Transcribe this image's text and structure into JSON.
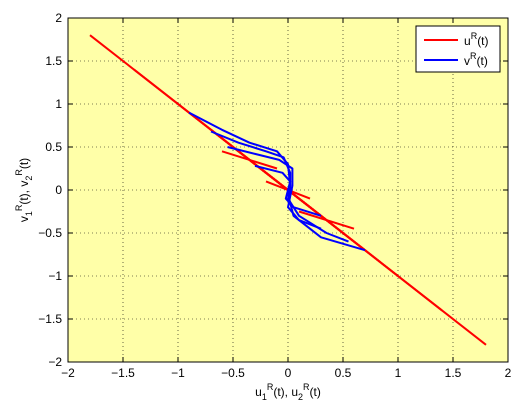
{
  "chart_data": {
    "type": "line",
    "xlim": [
      -2,
      2
    ],
    "ylim": [
      -2,
      2
    ],
    "x_ticks": [
      -2,
      -1.5,
      -1,
      -0.5,
      0,
      0.5,
      1,
      1.5,
      2
    ],
    "y_ticks": [
      -2,
      -1.5,
      -1,
      -0.5,
      0,
      0.5,
      1,
      1.5,
      2
    ],
    "x_tick_labels": [
      "−2",
      "−1.5",
      "−1",
      "−0.5",
      "0",
      "0.5",
      "1",
      "1.5",
      "2"
    ],
    "y_tick_labels": [
      "−2",
      "−1.5",
      "−1",
      "−0.5",
      "0",
      "0.5",
      "1",
      "1.5",
      "2"
    ],
    "grid": true,
    "legend_position": "top-right",
    "background_color": "#ffffa8",
    "xlabel": {
      "base1": "u",
      "sub1": "1",
      "sup1": "R",
      "tail1": "(t), ",
      "base2": "u",
      "sub2": "2",
      "sup2": "R",
      "tail2": "(t)"
    },
    "ylabel": {
      "base1": "v",
      "sub1": "1",
      "sup1": "R",
      "tail1": "(t), ",
      "base2": "v",
      "sub2": "2",
      "sup2": "R",
      "tail2": "(t)"
    },
    "series": [
      {
        "name": "u",
        "name_sup": "R",
        "name_tail": "(t)",
        "color": "#ff0000",
        "segments": [
          [
            [
              -1.8,
              1.8
            ],
            [
              1.8,
              -1.8
            ]
          ],
          [
            [
              -1.4,
              1.4
            ],
            [
              1.4,
              -1.4
            ]
          ],
          [
            [
              -1.0,
              1.0
            ],
            [
              1.0,
              -1.0
            ]
          ],
          [
            [
              -0.7,
              0.7
            ],
            [
              0.7,
              -0.7
            ]
          ],
          [
            [
              -0.5,
              0.5
            ],
            [
              0.5,
              -0.5
            ]
          ],
          [
            [
              -0.3,
              0.3
            ],
            [
              0.3,
              -0.3
            ]
          ],
          [
            [
              -0.6,
              0.45
            ],
            [
              -0.1,
              0.25
            ]
          ],
          [
            [
              0.1,
              -0.25
            ],
            [
              0.6,
              -0.45
            ]
          ],
          [
            [
              -0.2,
              0.1
            ],
            [
              0.2,
              -0.1
            ]
          ]
        ]
      },
      {
        "name": "v",
        "name_sup": "R",
        "name_tail": "(t)",
        "color": "#0000ff",
        "curves": [
          [
            [
              -0.9,
              0.9
            ],
            [
              -0.6,
              0.7
            ],
            [
              -0.35,
              0.55
            ],
            [
              -0.1,
              0.45
            ],
            [
              0.0,
              0.3
            ],
            [
              0.02,
              0.05
            ],
            [
              0.0,
              -0.05
            ],
            [
              0.05,
              -0.3
            ],
            [
              0.3,
              -0.55
            ],
            [
              0.7,
              -0.7
            ]
          ],
          [
            [
              -0.7,
              0.68
            ],
            [
              -0.45,
              0.55
            ],
            [
              -0.2,
              0.45
            ],
            [
              -0.04,
              0.38
            ],
            [
              0.02,
              0.2
            ],
            [
              0.02,
              0.0
            ],
            [
              0.0,
              -0.1
            ],
            [
              0.1,
              -0.3
            ],
            [
              0.35,
              -0.5
            ],
            [
              0.55,
              -0.6
            ]
          ],
          [
            [
              -0.55,
              0.5
            ],
            [
              -0.3,
              0.42
            ],
            [
              -0.08,
              0.35
            ],
            [
              0.04,
              0.25
            ],
            [
              0.04,
              0.05
            ],
            [
              0.0,
              -0.2
            ],
            [
              0.1,
              -0.35
            ],
            [
              0.3,
              -0.45
            ]
          ],
          [
            [
              -0.3,
              0.28
            ],
            [
              -0.05,
              0.2
            ],
            [
              0.02,
              0.1
            ],
            [
              -0.02,
              -0.1
            ],
            [
              0.05,
              -0.2
            ],
            [
              0.3,
              -0.3
            ]
          ]
        ]
      }
    ]
  }
}
